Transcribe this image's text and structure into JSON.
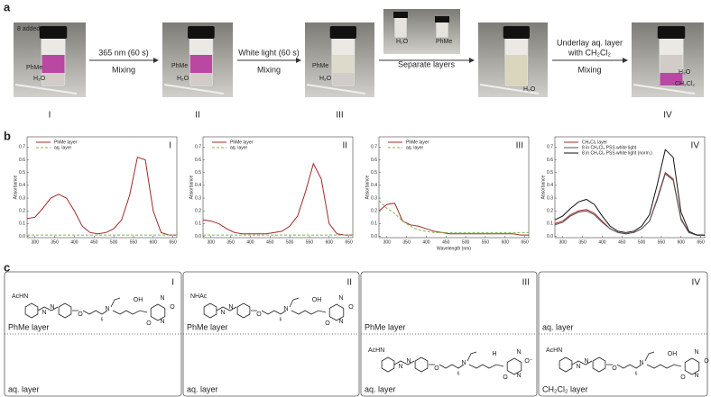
{
  "panel_labels": [
    "a",
    "b",
    "c"
  ],
  "panel_a": {
    "photos": [
      {
        "labels": [
          "8 added",
          "PhMe",
          "H₂O"
        ],
        "numeral": "I"
      },
      {
        "labels": [
          "PhMe",
          "H₂O"
        ],
        "numeral": "II"
      },
      {
        "labels": [
          "PhMe",
          "H₂O"
        ],
        "numeral": "III"
      },
      {
        "labels": [
          "H₂O",
          "PhMe"
        ]
      },
      {
        "labels": [
          "H₂O"
        ]
      },
      {
        "labels": [
          "H₂O",
          "CH₂Cl₂"
        ],
        "numeral": "IV"
      }
    ],
    "steps": [
      {
        "above": [
          "365 nm (60 s)"
        ],
        "below": "Mixing"
      },
      {
        "above": [
          "White light (60 s)"
        ],
        "below": "Mixing"
      },
      {
        "above": [
          "Separate layers"
        ]
      },
      {
        "above": [
          "Underlay aq. layer",
          "with CH₂Cl₂"
        ],
        "below": "Mixing"
      }
    ]
  },
  "chart_data": [
    {
      "type": "line",
      "numeral": "I",
      "y_label": "Absorbance",
      "x": [
        280,
        300,
        320,
        340,
        360,
        380,
        400,
        420,
        440,
        460,
        480,
        500,
        520,
        540,
        560,
        580,
        600,
        620,
        640,
        660
      ],
      "xlim": [
        280,
        660
      ],
      "xticks": [
        300,
        350,
        400,
        450,
        500,
        550,
        600,
        650
      ],
      "ylim": [
        -0.01,
        0.78
      ],
      "yticks": [
        {
          "value": 0,
          "label": "0.0"
        },
        0.1,
        0.2,
        0.3,
        0.4,
        0.5,
        0.6,
        0.7
      ],
      "series": [
        {
          "name": "PhMe layer",
          "color": "#a3282b",
          "style": "solid",
          "values": [
            0.14,
            0.15,
            0.22,
            0.3,
            0.33,
            0.3,
            0.2,
            0.08,
            0.03,
            0.02,
            0.03,
            0.06,
            0.13,
            0.32,
            0.62,
            0.6,
            0.2,
            0.03,
            0.01,
            0.01
          ]
        },
        {
          "name": "aq. layer",
          "color": "#7ab648",
          "style": "dashed",
          "values": [
            0.01,
            0.01,
            0.01,
            0.01,
            0.01,
            0.01,
            0.01,
            0.01,
            0.01,
            0.01,
            0.01,
            0.01,
            0.01,
            0.01,
            0.01,
            0.01,
            0.01,
            0.01,
            0.01,
            0.01
          ]
        }
      ]
    },
    {
      "type": "line",
      "numeral": "II",
      "y_label": "Absorbance",
      "x": [
        280,
        300,
        320,
        340,
        360,
        380,
        400,
        420,
        440,
        460,
        480,
        500,
        520,
        540,
        560,
        580,
        600,
        620,
        640,
        660
      ],
      "xlim": [
        280,
        660
      ],
      "xticks": [
        300,
        350,
        400,
        450,
        500,
        550,
        600,
        650
      ],
      "ylim": [
        -0.01,
        0.78
      ],
      "yticks": [
        {
          "value": 0,
          "label": "0.0"
        },
        0.1,
        0.2,
        0.3,
        0.4,
        0.5,
        0.6,
        0.7
      ],
      "series": [
        {
          "name": "PhMe layer",
          "color": "#a3282b",
          "style": "solid",
          "values": [
            0.13,
            0.12,
            0.1,
            0.06,
            0.03,
            0.02,
            0.02,
            0.02,
            0.02,
            0.03,
            0.04,
            0.08,
            0.16,
            0.35,
            0.57,
            0.45,
            0.1,
            0.02,
            0.01,
            0.01
          ]
        },
        {
          "name": "aq. layer",
          "color": "#7ab648",
          "style": "dashed",
          "values": [
            0.01,
            0.01,
            0.01,
            0.01,
            0.01,
            0.01,
            0.01,
            0.01,
            0.01,
            0.01,
            0.01,
            0.01,
            0.01,
            0.01,
            0.01,
            0.01,
            0.01,
            0.01,
            0.01,
            0.01
          ]
        }
      ]
    },
    {
      "type": "line",
      "numeral": "III",
      "y_label": "Absorbance",
      "x_label": "Wavelength (nm)",
      "x": [
        280,
        300,
        320,
        340,
        360,
        380,
        400,
        420,
        440,
        460,
        480,
        500,
        520,
        540,
        560,
        580,
        600,
        620,
        640,
        660
      ],
      "xlim": [
        280,
        660
      ],
      "xticks": [
        300,
        350,
        400,
        450,
        500,
        550,
        600,
        650
      ],
      "ylim": [
        -0.01,
        0.78
      ],
      "yticks": [
        {
          "value": 0,
          "label": "0.0"
        },
        0.1,
        0.2,
        0.3,
        0.4,
        0.5,
        0.6,
        0.7
      ],
      "series": [
        {
          "name": "PhMe layer",
          "color": "#a3282b",
          "style": "solid",
          "values": [
            0.2,
            0.25,
            0.26,
            0.12,
            0.09,
            0.08,
            0.06,
            0.04,
            0.03,
            0.02,
            0.02,
            0.02,
            0.02,
            0.02,
            0.02,
            0.02,
            0.02,
            0.02,
            0.01,
            0.01
          ]
        },
        {
          "name": "aq. layer",
          "color": "#7ab648",
          "style": "dashed",
          "values": [
            0.28,
            0.22,
            0.18,
            0.12,
            0.08,
            0.05,
            0.04,
            0.03,
            0.03,
            0.03,
            0.03,
            0.03,
            0.03,
            0.03,
            0.03,
            0.03,
            0.03,
            0.03,
            0.03,
            0.03
          ]
        }
      ]
    },
    {
      "type": "line",
      "numeral": "IV",
      "y_label": "Absorbance",
      "x": [
        280,
        300,
        320,
        340,
        360,
        380,
        400,
        420,
        440,
        460,
        480,
        500,
        520,
        540,
        560,
        580,
        600,
        620,
        640,
        660
      ],
      "xlim": [
        280,
        660
      ],
      "xticks": [
        300,
        350,
        400,
        450,
        500,
        550,
        600,
        650
      ],
      "ylim": [
        -0.01,
        0.78
      ],
      "yticks": [
        {
          "value": 0,
          "label": "0.0"
        },
        0.1,
        0.2,
        0.3,
        0.4,
        0.5,
        0.6,
        0.7
      ],
      "series": [
        {
          "name": "CH₂Cl₂ layer",
          "color": "#a3282b",
          "style": "solid",
          "values": [
            0.1,
            0.12,
            0.17,
            0.2,
            0.21,
            0.18,
            0.12,
            0.06,
            0.03,
            0.02,
            0.03,
            0.06,
            0.12,
            0.3,
            0.5,
            0.45,
            0.14,
            0.03,
            0.01,
            0.01
          ]
        },
        {
          "name": "8 in CH₂Cl₂ PSS white light",
          "color": "#555555",
          "style": "solid",
          "values": [
            0.09,
            0.11,
            0.16,
            0.19,
            0.2,
            0.17,
            0.11,
            0.06,
            0.03,
            0.02,
            0.03,
            0.06,
            0.12,
            0.29,
            0.49,
            0.44,
            0.13,
            0.03,
            0.01,
            0.01
          ]
        },
        {
          "name": "8 in CH₂Cl₂ PSS white light (norm.)",
          "color": "#111111",
          "style": "solid",
          "values": [
            0.13,
            0.16,
            0.22,
            0.27,
            0.29,
            0.25,
            0.16,
            0.08,
            0.04,
            0.03,
            0.04,
            0.08,
            0.17,
            0.41,
            0.68,
            0.62,
            0.19,
            0.04,
            0.01,
            0.01
          ]
        }
      ]
    }
  ],
  "panel_c": {
    "boxes": [
      {
        "numeral": "I",
        "top": "PhMe layer",
        "bottom": "aq. layer",
        "atoms": [
          "AcHN",
          "N",
          "N",
          "O",
          "6",
          "N",
          "OH",
          "N",
          "N",
          "O",
          "O"
        ]
      },
      {
        "numeral": "II",
        "top": "PhMe layer",
        "bottom": "aq. layer",
        "atoms": [
          "NHAc",
          "N",
          "N",
          "O",
          "6",
          "N",
          "OH",
          "N",
          "N",
          "O",
          "O"
        ]
      },
      {
        "numeral": "III",
        "top": "PhMe layer",
        "bottom": "aq. layer",
        "atoms": [
          "AcHN",
          "N",
          "N",
          "O",
          "6",
          "N",
          "H",
          "N",
          "N",
          "O⁻",
          "O"
        ]
      },
      {
        "numeral": "IV",
        "top": "aq. layer",
        "bottom": "CH₂Cl₂ layer",
        "atoms": [
          "AcHN",
          "N",
          "N",
          "O",
          "6",
          "N",
          "OH",
          "N",
          "N",
          "O",
          "O"
        ]
      }
    ]
  }
}
